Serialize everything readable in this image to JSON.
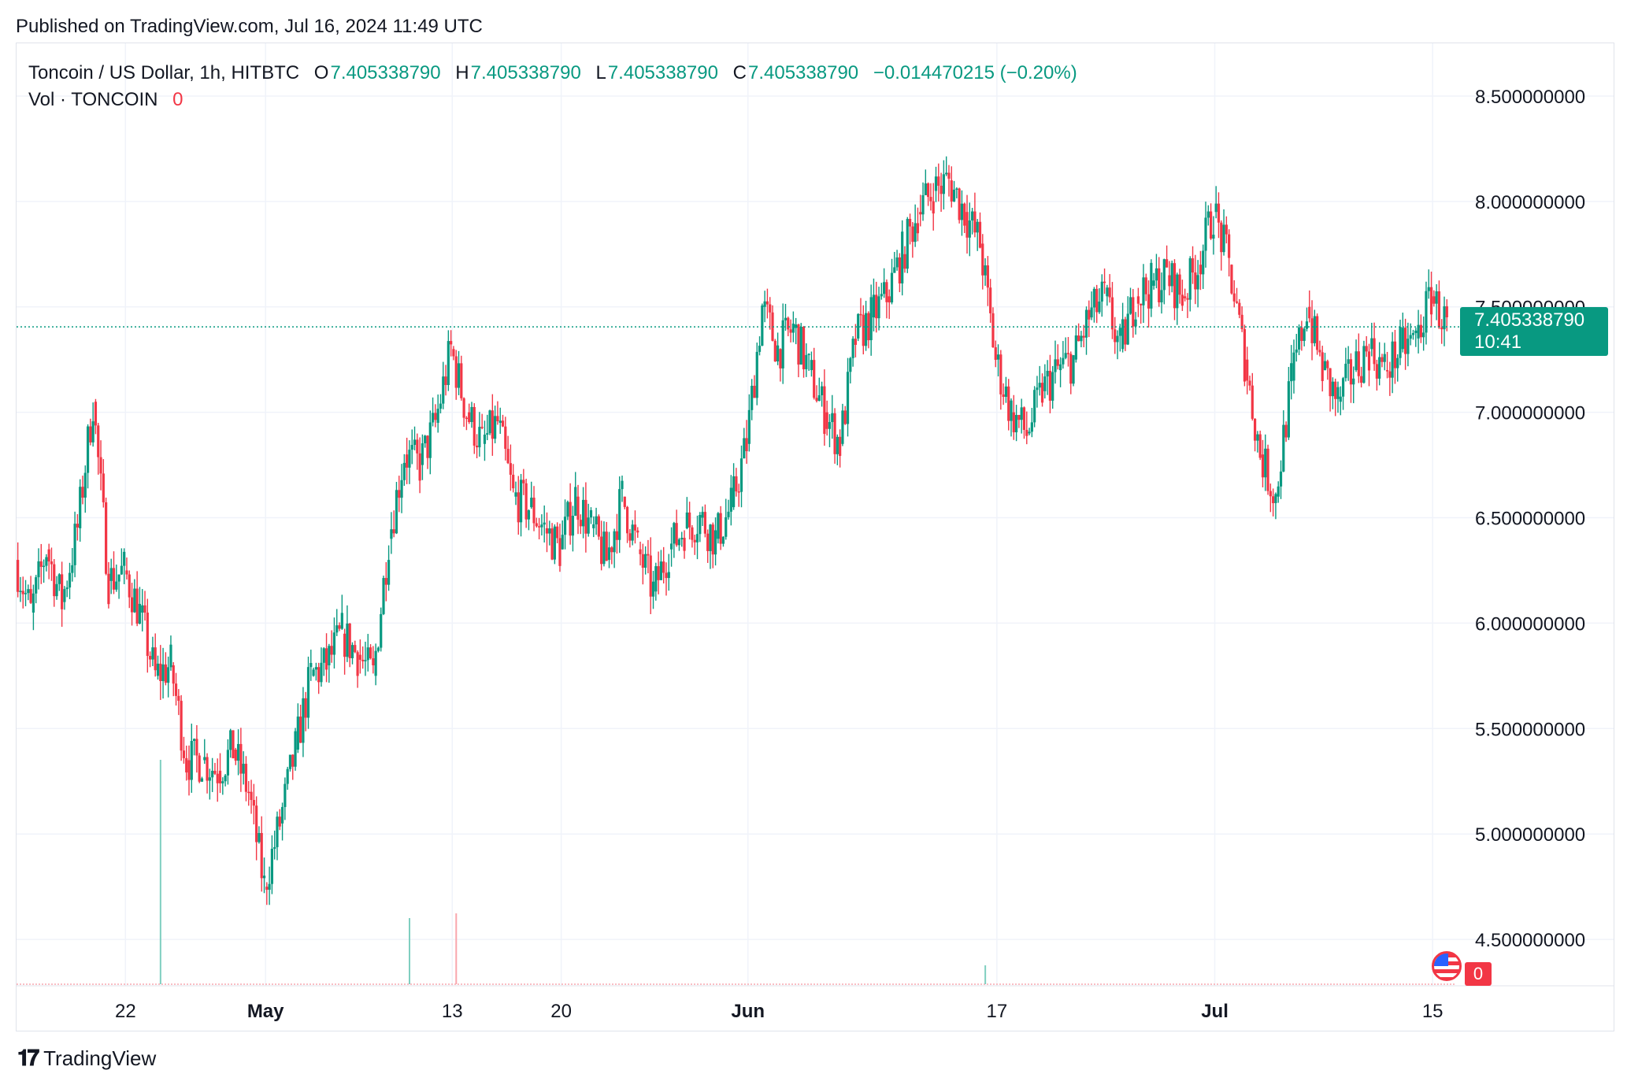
{
  "published": "Published on TradingView.com, Jul 16, 2024 11:49 UTC",
  "legend": {
    "symbol": "Toncoin / US Dollar, 1h, HITBTC",
    "o_label": "O",
    "o_value": "7.405338790",
    "h_label": "H",
    "h_value": "7.405338790",
    "l_label": "L",
    "l_value": "7.405338790",
    "c_label": "C",
    "c_value": "7.405338790",
    "change": "−0.014470215 (−0.20%)",
    "vol_label": "Vol · TONCOIN",
    "vol_value": "0"
  },
  "price_tag": {
    "price": "7.405338790",
    "countdown": "10:41"
  },
  "vol_tag": "0",
  "footer": {
    "brand": "TradingView"
  },
  "colors": {
    "up": "#089981",
    "down": "#f23645",
    "grid": "#f0f3fa",
    "axis_text": "#131722"
  },
  "chart_data": {
    "type": "candlestick",
    "interval": "1h",
    "ylim": [
      4.28,
      8.75
    ],
    "current_price": 7.40533879,
    "y_ticks": [
      {
        "value": 8.5,
        "label": "8.500000000"
      },
      {
        "value": 8.0,
        "label": "8.000000000"
      },
      {
        "value": 7.5,
        "label": "7.500000000"
      },
      {
        "value": 7.0,
        "label": "7.000000000"
      },
      {
        "value": 6.5,
        "label": "6.500000000"
      },
      {
        "value": 6.0,
        "label": "6.000000000"
      },
      {
        "value": 5.5,
        "label": "5.500000000"
      },
      {
        "value": 5.0,
        "label": "5.000000000"
      },
      {
        "value": 4.5,
        "label": "4.500000000"
      }
    ],
    "x_ticks": [
      {
        "date": "2024-04-22",
        "label": "22"
      },
      {
        "date": "2024-05-01",
        "label": "May"
      },
      {
        "date": "2024-05-13",
        "label": "13"
      },
      {
        "date": "2024-05-20",
        "label": "20"
      },
      {
        "date": "2024-06-01",
        "label": "Jun"
      },
      {
        "date": "2024-06-17",
        "label": "17"
      },
      {
        "date": "2024-07-01",
        "label": "Jul"
      },
      {
        "date": "2024-07-15",
        "label": "15"
      }
    ],
    "x_range": [
      "2024-04-15",
      "2024-07-16T11:00"
    ],
    "series": [
      {
        "date": "2024-04-15",
        "close": 6.3
      },
      {
        "date": "2024-04-16",
        "close": 6.05
      },
      {
        "date": "2024-04-17",
        "close": 6.35
      },
      {
        "date": "2024-04-18",
        "close": 6.1
      },
      {
        "date": "2024-04-19",
        "close": 6.45
      },
      {
        "date": "2024-04-20",
        "close": 7.05
      },
      {
        "date": "2024-04-21",
        "close": 6.2
      },
      {
        "date": "2024-04-22",
        "close": 6.25
      },
      {
        "date": "2024-04-23",
        "close": 6.05
      },
      {
        "date": "2024-04-24",
        "close": 5.75
      },
      {
        "date": "2024-04-25",
        "close": 5.8
      },
      {
        "date": "2024-04-26",
        "close": 5.35
      },
      {
        "date": "2024-04-27",
        "close": 5.35
      },
      {
        "date": "2024-04-28",
        "close": 5.3
      },
      {
        "date": "2024-04-29",
        "close": 5.4
      },
      {
        "date": "2024-04-30",
        "close": 5.2
      },
      {
        "date": "2024-05-01",
        "close": 4.75
      },
      {
        "date": "2024-05-02",
        "close": 5.05
      },
      {
        "date": "2024-05-03",
        "close": 5.4
      },
      {
        "date": "2024-05-04",
        "close": 5.75
      },
      {
        "date": "2024-05-05",
        "close": 5.8
      },
      {
        "date": "2024-05-06",
        "close": 5.95
      },
      {
        "date": "2024-05-07",
        "close": 5.85
      },
      {
        "date": "2024-05-08",
        "close": 5.75
      },
      {
        "date": "2024-05-09",
        "close": 6.4
      },
      {
        "date": "2024-05-10",
        "close": 6.8
      },
      {
        "date": "2024-05-11",
        "close": 6.75
      },
      {
        "date": "2024-05-12",
        "close": 6.95
      },
      {
        "date": "2024-05-13",
        "close": 7.3
      },
      {
        "date": "2024-05-14",
        "close": 7.0
      },
      {
        "date": "2024-05-15",
        "close": 6.85
      },
      {
        "date": "2024-05-16",
        "close": 6.95
      },
      {
        "date": "2024-05-17",
        "close": 6.6
      },
      {
        "date": "2024-05-18",
        "close": 6.55
      },
      {
        "date": "2024-05-19",
        "close": 6.45
      },
      {
        "date": "2024-05-20",
        "close": 6.35
      },
      {
        "date": "2024-05-21",
        "close": 6.6
      },
      {
        "date": "2024-05-22",
        "close": 6.45
      },
      {
        "date": "2024-05-23",
        "close": 6.3
      },
      {
        "date": "2024-05-24",
        "close": 6.6
      },
      {
        "date": "2024-05-25",
        "close": 6.35
      },
      {
        "date": "2024-05-26",
        "close": 6.15
      },
      {
        "date": "2024-05-27",
        "close": 6.35
      },
      {
        "date": "2024-05-28",
        "close": 6.45
      },
      {
        "date": "2024-05-29",
        "close": 6.5
      },
      {
        "date": "2024-05-30",
        "close": 6.4
      },
      {
        "date": "2024-05-31",
        "close": 6.55
      },
      {
        "date": "2024-06-01",
        "close": 6.85
      },
      {
        "date": "2024-06-02",
        "close": 7.5
      },
      {
        "date": "2024-06-03",
        "close": 7.3
      },
      {
        "date": "2024-06-04",
        "close": 7.4
      },
      {
        "date": "2024-06-05",
        "close": 7.2
      },
      {
        "date": "2024-06-06",
        "close": 7.0
      },
      {
        "date": "2024-06-07",
        "close": 6.85
      },
      {
        "date": "2024-06-08",
        "close": 7.35
      },
      {
        "date": "2024-06-09",
        "close": 7.45
      },
      {
        "date": "2024-06-10",
        "close": 7.55
      },
      {
        "date": "2024-06-11",
        "close": 7.75
      },
      {
        "date": "2024-06-12",
        "close": 7.95
      },
      {
        "date": "2024-06-13",
        "close": 8.05
      },
      {
        "date": "2024-06-14",
        "close": 8.1
      },
      {
        "date": "2024-06-15",
        "close": 7.95
      },
      {
        "date": "2024-06-16",
        "close": 7.8
      },
      {
        "date": "2024-06-17",
        "close": 7.25
      },
      {
        "date": "2024-06-18",
        "close": 7.0
      },
      {
        "date": "2024-06-19",
        "close": 6.9
      },
      {
        "date": "2024-06-20",
        "close": 7.1
      },
      {
        "date": "2024-06-21",
        "close": 7.2
      },
      {
        "date": "2024-06-22",
        "close": 7.25
      },
      {
        "date": "2024-06-23",
        "close": 7.45
      },
      {
        "date": "2024-06-24",
        "close": 7.55
      },
      {
        "date": "2024-06-25",
        "close": 7.3
      },
      {
        "date": "2024-06-26",
        "close": 7.55
      },
      {
        "date": "2024-06-27",
        "close": 7.6
      },
      {
        "date": "2024-06-28",
        "close": 7.65
      },
      {
        "date": "2024-06-29",
        "close": 7.55
      },
      {
        "date": "2024-06-30",
        "close": 7.7
      },
      {
        "date": "2024-07-01",
        "close": 7.95
      },
      {
        "date": "2024-07-02",
        "close": 7.7
      },
      {
        "date": "2024-07-03",
        "close": 7.25
      },
      {
        "date": "2024-07-04",
        "close": 6.8
      },
      {
        "date": "2024-07-05",
        "close": 6.6
      },
      {
        "date": "2024-07-06",
        "close": 7.15
      },
      {
        "date": "2024-07-07",
        "close": 7.5
      },
      {
        "date": "2024-07-08",
        "close": 7.2
      },
      {
        "date": "2024-07-09",
        "close": 7.05
      },
      {
        "date": "2024-07-10",
        "close": 7.2
      },
      {
        "date": "2024-07-11",
        "close": 7.3
      },
      {
        "date": "2024-07-12",
        "close": 7.2
      },
      {
        "date": "2024-07-13",
        "close": 7.3
      },
      {
        "date": "2024-07-14",
        "close": 7.35
      },
      {
        "date": "2024-07-15",
        "close": 7.55
      },
      {
        "date": "2024-07-16",
        "close": 7.41
      }
    ],
    "volume_spikes": [
      {
        "date": "2024-04-24",
        "dir": "up",
        "rel": 0.95
      },
      {
        "date": "2024-05-10",
        "dir": "up",
        "rel": 0.28
      },
      {
        "date": "2024-05-13",
        "dir": "down",
        "rel": 0.3
      },
      {
        "date": "2024-06-16",
        "dir": "up",
        "rel": 0.08
      }
    ]
  }
}
